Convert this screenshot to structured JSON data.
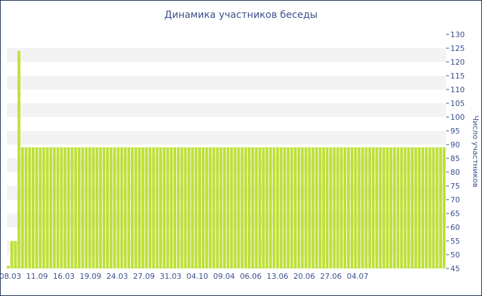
{
  "chart_data": {
    "type": "bar",
    "title": "Динамика участников беседы",
    "xlabel": "",
    "ylabel": "Число участников",
    "ylim": [
      45,
      130
    ],
    "y_ticks": [
      45,
      50,
      55,
      60,
      65,
      70,
      75,
      80,
      85,
      90,
      95,
      100,
      105,
      110,
      115,
      120,
      125,
      130
    ],
    "x_tick_labels": [
      "08.03",
      "11.09",
      "16.03",
      "19.09",
      "24.03",
      "27.09",
      "31.03",
      "04.10",
      "09.04",
      "06.06",
      "13.06",
      "20.06",
      "27.06",
      "04.07"
    ],
    "values": [
      46,
      55,
      55,
      124,
      89,
      89,
      89,
      89,
      89,
      89,
      89,
      89,
      89,
      89,
      89,
      89,
      89,
      89,
      89,
      89,
      89,
      89,
      89,
      89,
      89,
      89,
      89,
      89,
      89,
      89,
      89,
      89,
      89,
      89,
      89,
      89,
      89,
      89,
      89,
      89,
      89,
      89,
      89,
      89,
      89,
      89,
      89,
      89,
      89,
      89,
      89,
      89,
      89,
      89,
      89,
      89,
      89,
      89,
      89,
      89,
      89,
      89,
      89,
      89,
      89,
      89,
      89,
      89,
      89,
      89,
      89,
      89,
      89,
      89,
      89,
      89,
      89,
      89,
      89,
      89,
      89,
      89,
      89,
      89,
      89,
      89,
      89,
      89,
      89,
      89,
      89,
      89,
      89,
      89,
      89,
      89,
      89,
      89,
      89,
      89,
      89,
      89,
      89,
      89,
      89,
      89,
      89,
      89,
      89,
      89,
      89,
      89,
      89,
      89,
      89,
      89,
      89,
      89,
      89,
      89,
      89,
      89,
      89,
      89
    ],
    "grid": "horizontal bands",
    "y_axis_position": "right",
    "colors": {
      "bar": "#bfe03a",
      "band": "#f3f3f3",
      "text": "#3b4f8c"
    }
  }
}
